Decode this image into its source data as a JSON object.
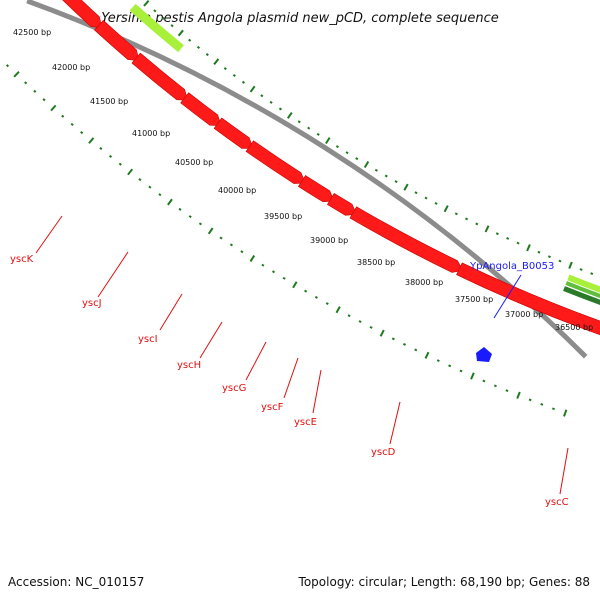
{
  "title": "Yersinia pestis Angola plasmid new_pCD, complete sequence",
  "footer": {
    "accession": "Accession: NC_010157",
    "topology": "Topology: circular; Length: 68,190 bp; Genes: 88"
  },
  "bp_labels": [
    "42500 bp",
    "42000 bp",
    "41500 bp",
    "41000 bp",
    "40500 bp",
    "40000 bp",
    "39500 bp",
    "39000 bp",
    "38500 bp",
    "38000 bp",
    "37500 bp",
    "37000 bp",
    "36500 bp"
  ],
  "gene_labels": [
    "yscK",
    "yscJ",
    "yscI",
    "yscH",
    "yscG",
    "yscF",
    "yscE",
    "yscD",
    "yscC"
  ],
  "feature_label": "YpAngola_B0053",
  "colors": {
    "backbone": "#8c8c8c",
    "cds": "#ff1a1a",
    "dark_green": "#2a7a2a",
    "light_green": "#a8f03a",
    "tick": "#1f7a1f",
    "feature": "#1a1aff",
    "gene_text": "#e01010"
  }
}
